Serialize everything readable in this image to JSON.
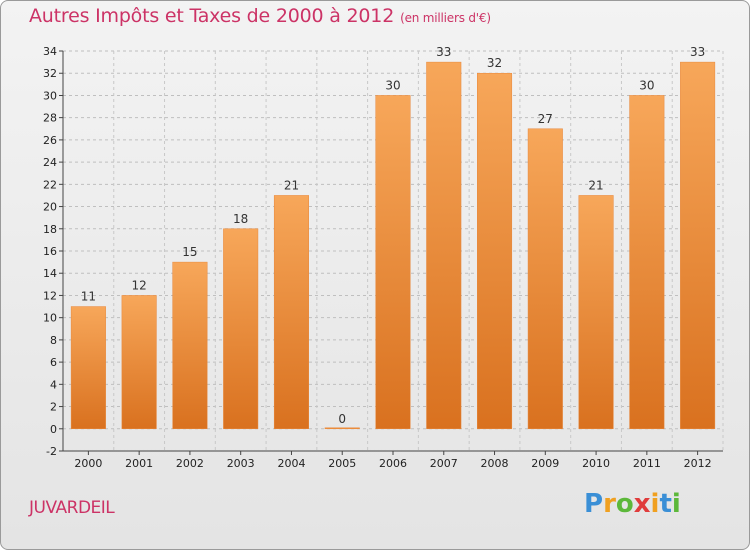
{
  "chart_data": {
    "type": "bar",
    "title": "Autres Impôts et Taxes de 2000 à 2012",
    "title_units": "(en milliers d'€)",
    "categories": [
      "2000",
      "2001",
      "2002",
      "2003",
      "2004",
      "2005",
      "2006",
      "2007",
      "2008",
      "2009",
      "2010",
      "2011",
      "2012"
    ],
    "values": [
      11,
      12,
      15,
      18,
      21,
      0,
      30,
      33,
      32,
      27,
      21,
      30,
      33
    ],
    "ylim": [
      -2,
      34
    ],
    "yticks": [
      -2,
      0,
      2,
      4,
      6,
      8,
      10,
      12,
      14,
      16,
      18,
      20,
      22,
      24,
      26,
      28,
      30,
      32,
      34
    ],
    "grid": true,
    "bar_color": "#f0903a",
    "xlabel": "",
    "ylabel": ""
  },
  "commune": "JUVARDEIL",
  "logo": {
    "letters": [
      "P",
      "r",
      "o",
      "x",
      "i",
      "t",
      "i"
    ],
    "colors": [
      "#3a8fd6",
      "#f0a020",
      "#5cb83a",
      "#e03c3c",
      "#f0a020",
      "#3a8fd6",
      "#5cb83a"
    ]
  }
}
